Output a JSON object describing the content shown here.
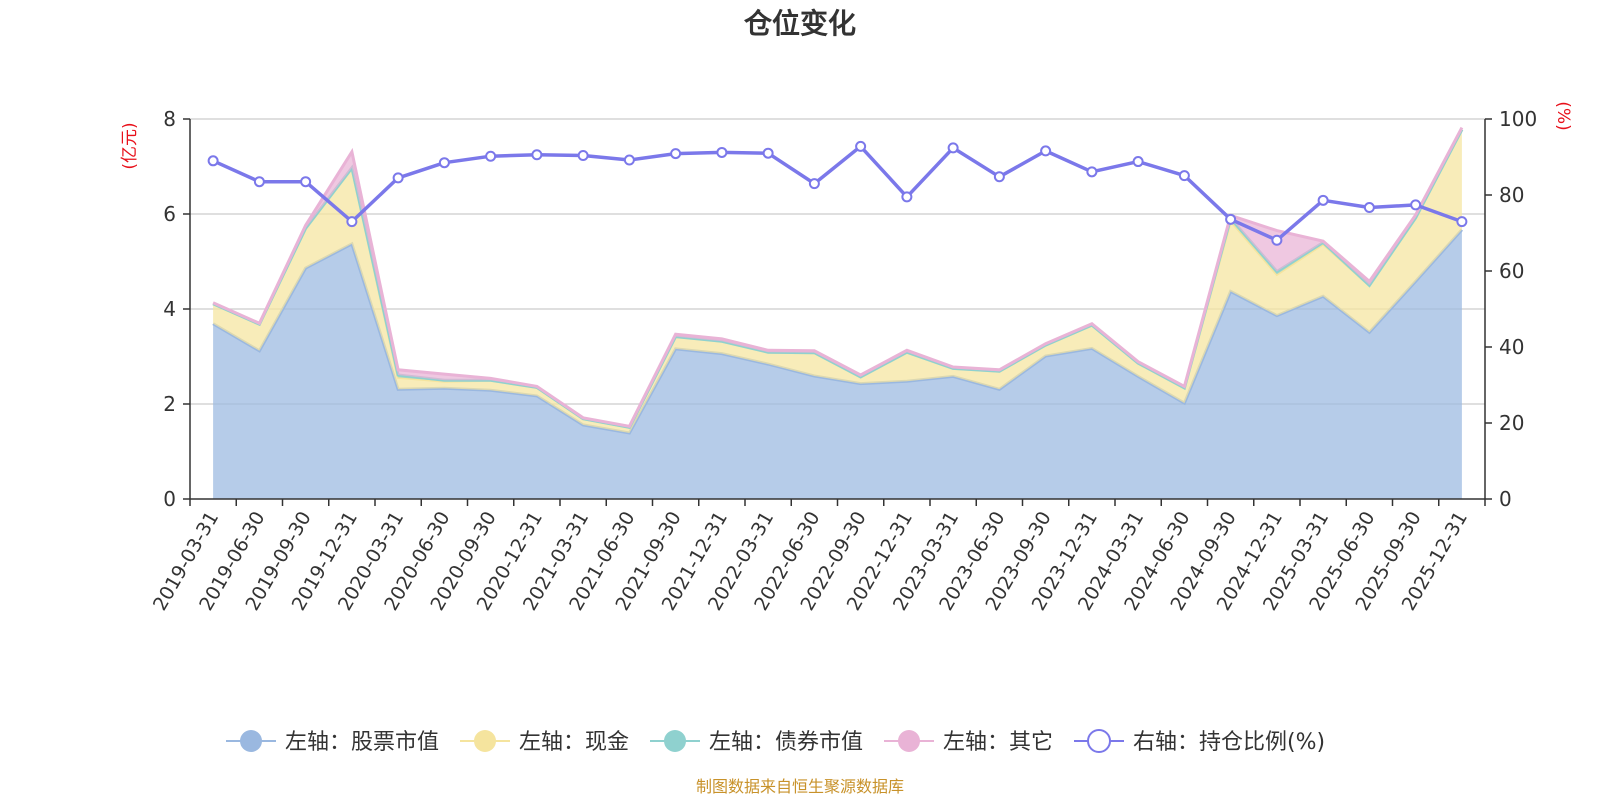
{
  "chart_data": {
    "type": "area",
    "title": "仓位变化",
    "left_unit": "(亿元)",
    "right_unit": "(%)",
    "ylim_left": [
      0,
      8
    ],
    "ylim_right": [
      0,
      100
    ],
    "left_ticks": [
      "0",
      "2",
      "4",
      "6",
      "8"
    ],
    "right_ticks": [
      "0",
      "20",
      "40",
      "60",
      "80",
      "100"
    ],
    "grid": true,
    "legend_position": "bottom",
    "source": "制图数据来自恒生聚源数据库",
    "x": [
      "2019-03-31",
      "2019-06-30",
      "2019-09-30",
      "2019-12-31",
      "2020-03-31",
      "2020-06-30",
      "2020-09-30",
      "2020-12-31",
      "2021-03-31",
      "2021-06-30",
      "2021-09-30",
      "2021-12-31",
      "2022-03-31",
      "2022-06-30",
      "2022-09-30",
      "2022-12-31",
      "2023-03-31",
      "2023-06-30",
      "2023-09-30",
      "2023-12-31",
      "2024-03-31",
      "2024-06-30",
      "2024-09-30",
      "2024-12-31",
      "2025-03-31",
      "2025-06-30",
      "2025-09-30",
      "2025-12-31"
    ],
    "series": [
      {
        "name": "左轴：股票市值",
        "axis": "left",
        "kind": "stacked-area",
        "color": "#9ab8e0",
        "values": [
          3.69,
          3.12,
          4.86,
          5.37,
          2.31,
          2.33,
          2.29,
          2.17,
          1.56,
          1.39,
          3.16,
          3.06,
          2.84,
          2.59,
          2.43,
          2.48,
          2.58,
          2.31,
          3.01,
          3.17,
          2.58,
          2.02,
          4.37,
          3.86,
          4.27,
          3.51,
          4.58,
          5.67
        ]
      },
      {
        "name": "左轴：现金",
        "axis": "left",
        "kind": "stacked-area",
        "color": "#f5e49e",
        "values": [
          0.42,
          0.56,
          0.84,
          1.6,
          0.25,
          0.15,
          0.21,
          0.18,
          0.13,
          0.12,
          0.26,
          0.26,
          0.25,
          0.49,
          0.14,
          0.61,
          0.17,
          0.38,
          0.23,
          0.49,
          0.28,
          0.32,
          1.49,
          0.87,
          1.1,
          0.99,
          1.34,
          2.11
        ]
      },
      {
        "name": "左轴：债券市值",
        "axis": "left",
        "kind": "stacked-area",
        "color": "#8fd1cf",
        "values": [
          0,
          0,
          0,
          0,
          0.05,
          0.02,
          0,
          0,
          0,
          0,
          0,
          0,
          0,
          0,
          0,
          0,
          0,
          0,
          0,
          0,
          0,
          0,
          0.05,
          0.06,
          0.03,
          0,
          0,
          0
        ]
      },
      {
        "name": "左轴：其它",
        "axis": "left",
        "kind": "stacked-area",
        "color": "#e9b3d6",
        "values": [
          0.02,
          0.02,
          0.06,
          0.34,
          0.11,
          0.13,
          0.04,
          0.02,
          0.02,
          0.02,
          0.05,
          0.05,
          0.04,
          0.04,
          0.04,
          0.04,
          0.03,
          0.03,
          0.03,
          0.03,
          0.03,
          0.03,
          0.06,
          0.86,
          0.03,
          0.08,
          0.06,
          0.04
        ]
      },
      {
        "name": "右轴：持仓比例(%)",
        "axis": "right",
        "kind": "line",
        "color": "#7b78ea",
        "values": [
          89,
          83.5,
          83.5,
          73,
          84.5,
          88.5,
          90.2,
          90.6,
          90.4,
          89.2,
          90.9,
          91.2,
          91,
          83,
          92.8,
          79.5,
          92.4,
          84.8,
          91.6,
          86.1,
          88.8,
          85.1,
          73.6,
          68.1,
          78.6,
          76.7,
          77.4,
          73
        ]
      }
    ]
  }
}
